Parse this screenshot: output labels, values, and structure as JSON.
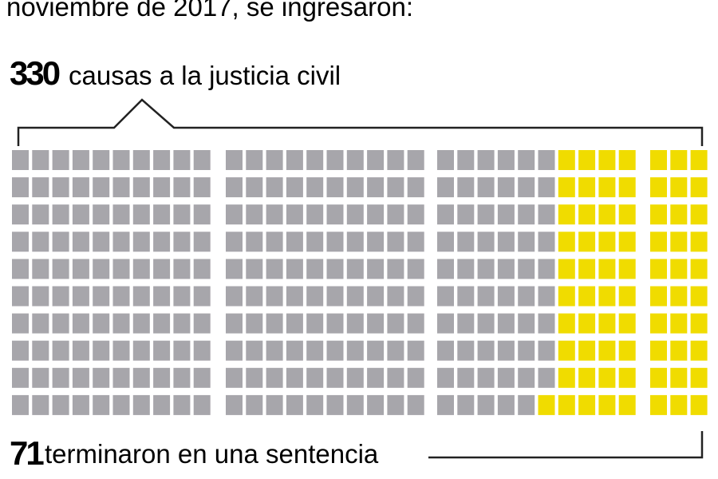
{
  "header": {
    "title": "noviembre de 2017, se ingresaron:"
  },
  "total": {
    "value": 330,
    "label": "causas a la justicia civil"
  },
  "highlighted": {
    "value": 71,
    "label": "terminaron en una sentencia"
  },
  "colors": {
    "base": "#a7a6ab",
    "highlight": "#f0dc00"
  }
}
